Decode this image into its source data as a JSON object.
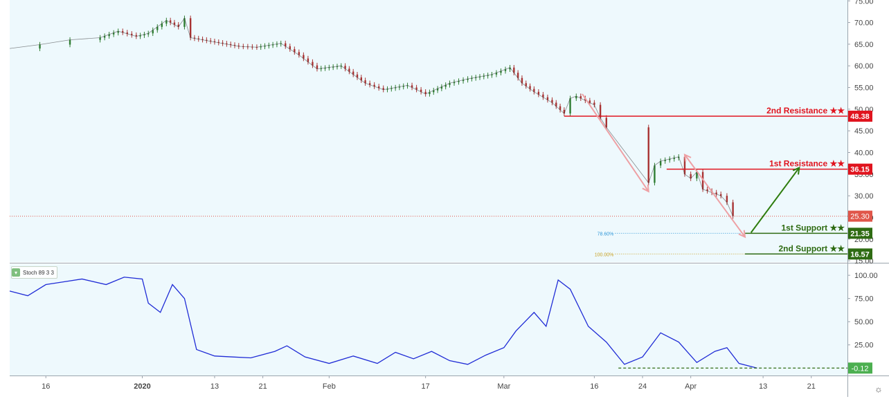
{
  "colors": {
    "background": "#eef9fd",
    "price_line": "#333333",
    "candle_up": "#2e7d32",
    "candle_down": "#a83232",
    "resistance": "#e0141e",
    "support": "#2e6b12",
    "current_price": "#e0564a",
    "stoch": "#1f2bd6",
    "arrow_down": "#eea0a4",
    "arrow_up": "#2e7d0e",
    "fib_786": "#2e96d8",
    "fib_100": "#c8a020"
  },
  "indicator": {
    "label": "Stoch 89 3 3",
    "collapse_icon": "chevron-down-icon"
  },
  "settings_icon": "gear-icon",
  "chart_data": [
    {
      "type": "line",
      "subtype": "candlestick",
      "grid": false,
      "y_axis_ticks": [
        15,
        20,
        25,
        30,
        35,
        40,
        45,
        50,
        55,
        60,
        65,
        70,
        75
      ],
      "y_axis_tick_labels": [
        "15.00",
        "20.00",
        "25.00",
        "30.00",
        "35.00",
        "40.00",
        "45.00",
        "50.00",
        "55.00",
        "60.00",
        "65.00",
        "70.00",
        "75.00"
      ],
      "ylim": [
        14.7,
        75.2
      ],
      "x_tick_labels": [
        "16",
        "2020",
        "13",
        "21",
        "Feb",
        "17",
        "Mar",
        "16",
        "24",
        "Apr",
        "13",
        "21"
      ],
      "x_tick_dates": [
        "2019-12-16",
        "2020-01-01",
        "2020-01-13",
        "2020-01-21",
        "2020-02-01",
        "2020-02-17",
        "2020-03-01",
        "2020-03-16",
        "2020-03-24",
        "2020-04-01",
        "2020-04-13",
        "2020-04-21"
      ],
      "x_range": [
        "2019-12-10",
        "2020-04-27"
      ],
      "series": [
        {
          "points": [
            [
              "2019-12-10",
              64.0
            ],
            [
              "2019-12-15",
              64.9
            ],
            [
              "2019-12-20",
              66.0
            ],
            [
              "2019-12-25",
              66.5
            ],
            [
              "2019-12-28",
              68.0
            ],
            [
              "2019-12-31",
              66.8
            ],
            [
              "2020-01-02",
              67.5
            ],
            [
              "2020-01-05",
              70.5
            ],
            [
              "2020-01-07",
              69.0
            ],
            [
              "2020-01-08",
              71.0
            ],
            [
              "2020-01-09",
              66.5
            ],
            [
              "2020-01-13",
              65.5
            ],
            [
              "2020-01-17",
              64.5
            ],
            [
              "2020-01-20",
              64.3
            ],
            [
              "2020-01-24",
              65.2
            ],
            [
              "2020-01-27",
              62.5
            ],
            [
              "2020-01-30",
              59.3
            ],
            [
              "2020-02-03",
              60.0
            ],
            [
              "2020-02-07",
              56.0
            ],
            [
              "2020-02-10",
              54.5
            ],
            [
              "2020-02-14",
              55.5
            ],
            [
              "2020-02-17",
              53.5
            ],
            [
              "2020-02-21",
              56.0
            ],
            [
              "2020-02-24",
              57.0
            ],
            [
              "2020-02-28",
              58.0
            ],
            [
              "2020-03-02",
              59.6
            ],
            [
              "2020-03-04",
              56.0
            ],
            [
              "2020-03-06",
              54.0
            ],
            [
              "2020-03-09",
              51.5
            ],
            [
              "2020-03-11",
              49.0
            ],
            [
              "2020-03-12",
              52.5
            ],
            [
              "2020-03-13",
              53.0
            ],
            [
              "2020-03-16",
              51.0
            ],
            [
              "2020-03-17",
              48.0
            ],
            [
              "2020-03-18",
              45.8
            ],
            [
              "2020-03-25",
              33.0
            ],
            [
              "2020-03-26",
              37.0
            ],
            [
              "2020-03-27",
              38.0
            ],
            [
              "2020-03-30",
              39.0
            ],
            [
              "2020-03-31",
              35.0
            ],
            [
              "2020-04-01",
              34.0
            ],
            [
              "2020-04-02",
              35.5
            ],
            [
              "2020-04-03",
              31.5
            ],
            [
              "2020-04-06",
              30.0
            ],
            [
              "2020-04-07",
              28.5
            ],
            [
              "2020-04-08",
              25.3
            ]
          ]
        }
      ],
      "current_price": 25.3,
      "current_price_label": "25.30",
      "levels": [
        {
          "name": "2nd Resistance ★★",
          "value": 48.38,
          "label": "48.38",
          "kind": "resistance",
          "start": "2020-03-11"
        },
        {
          "name": "1st Resistance ★★",
          "value": 36.15,
          "label": "36.15",
          "kind": "resistance",
          "start": "2020-03-28"
        },
        {
          "name": "1st Support ★★",
          "value": 21.35,
          "label": "21.35",
          "kind": "support",
          "start": "2020-04-10"
        },
        {
          "name": "2nd Support ★★",
          "value": 16.57,
          "label": "16.57",
          "kind": "support",
          "start": "2020-04-10"
        }
      ],
      "fib_levels": [
        {
          "label": "78.60%",
          "value": 21.35,
          "start": "2020-03-16",
          "end": "2020-04-10"
        },
        {
          "label": "100.00%",
          "value": 16.57,
          "start": "2020-03-16",
          "end": "2020-04-10"
        }
      ],
      "annotations": [
        {
          "kind": "arrow-down",
          "from": [
            "2020-03-14",
            53.5
          ],
          "to": [
            "2020-03-25",
            31.0
          ]
        },
        {
          "kind": "arrow-up-down",
          "from": [
            "2020-03-31",
            39.5
          ],
          "to": [
            "2020-04-10",
            20.5
          ]
        },
        {
          "kind": "arrow-up",
          "from": [
            "2020-04-11",
            21.5
          ],
          "to": [
            "2020-04-19",
            36.5
          ]
        }
      ]
    },
    {
      "type": "line",
      "title": "Stoch 89 3 3",
      "grid": false,
      "ylim": [
        -8,
        112
      ],
      "y_axis_ticks": [
        25,
        50,
        75,
        100
      ],
      "y_axis_tick_labels": [
        "25.00",
        "50.00",
        "75.00",
        "100.00"
      ],
      "current_value": -0.12,
      "current_value_label": "-0.12",
      "series": [
        {
          "name": "",
          "points": [
            [
              "2019-12-10",
              83
            ],
            [
              "2019-12-13",
              78
            ],
            [
              "2019-12-16",
              90
            ],
            [
              "2019-12-19",
              93
            ],
            [
              "2019-12-22",
              96
            ],
            [
              "2019-12-26",
              90
            ],
            [
              "2019-12-29",
              98
            ],
            [
              "2020-01-01",
              96
            ],
            [
              "2020-01-02",
              70
            ],
            [
              "2020-01-04",
              60
            ],
            [
              "2020-01-06",
              90
            ],
            [
              "2020-01-08",
              75
            ],
            [
              "2020-01-10",
              20
            ],
            [
              "2020-01-13",
              13
            ],
            [
              "2020-01-16",
              12
            ],
            [
              "2020-01-19",
              11
            ],
            [
              "2020-01-23",
              18
            ],
            [
              "2020-01-25",
              24
            ],
            [
              "2020-01-28",
              12
            ],
            [
              "2020-02-01",
              5
            ],
            [
              "2020-02-05",
              13
            ],
            [
              "2020-02-09",
              5
            ],
            [
              "2020-02-12",
              17
            ],
            [
              "2020-02-15",
              10
            ],
            [
              "2020-02-18",
              18
            ],
            [
              "2020-02-21",
              8
            ],
            [
              "2020-02-24",
              4
            ],
            [
              "2020-02-27",
              14
            ],
            [
              "2020-03-01",
              22
            ],
            [
              "2020-03-03",
              40
            ],
            [
              "2020-03-06",
              60
            ],
            [
              "2020-03-08",
              45
            ],
            [
              "2020-03-10",
              95
            ],
            [
              "2020-03-12",
              85
            ],
            [
              "2020-03-15",
              45
            ],
            [
              "2020-03-18",
              28
            ],
            [
              "2020-03-21",
              4
            ],
            [
              "2020-03-24",
              12
            ],
            [
              "2020-03-27",
              38
            ],
            [
              "2020-03-30",
              28
            ],
            [
              "2020-04-02",
              6
            ],
            [
              "2020-04-05",
              18
            ],
            [
              "2020-04-07",
              22
            ],
            [
              "2020-04-09",
              5
            ],
            [
              "2020-04-12",
              0
            ]
          ]
        }
      ],
      "reference_line": {
        "value": 0,
        "start": "2020-03-20"
      }
    }
  ]
}
